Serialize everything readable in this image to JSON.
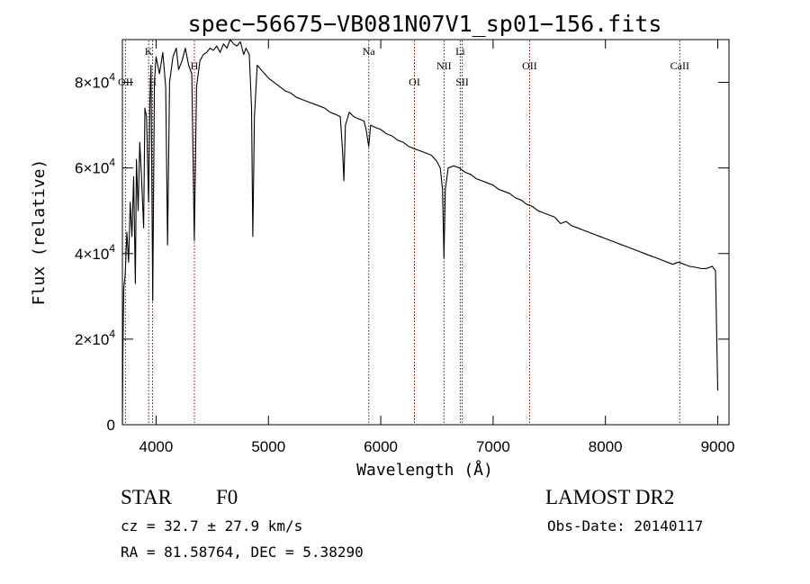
{
  "chart_data": {
    "type": "line",
    "title": "spec−56675−VB081N07V1_sp01−156.fits",
    "xlabel": "Wavelength (Å)",
    "ylabel": "Flux (relative)",
    "xlim": [
      3700,
      9100
    ],
    "ylim": [
      0,
      90000
    ],
    "x_ticks": [
      {
        "value": 4000,
        "label": "4000"
      },
      {
        "value": 5000,
        "label": "5000"
      },
      {
        "value": 6000,
        "label": "6000"
      },
      {
        "value": 7000,
        "label": "7000"
      },
      {
        "value": 8000,
        "label": "8000"
      },
      {
        "value": 9000,
        "label": "9000"
      }
    ],
    "y_ticks": [
      {
        "value": 0,
        "mantissa": "0",
        "exponent": ""
      },
      {
        "value": 20000,
        "mantissa": "2×10",
        "exponent": "4"
      },
      {
        "value": 40000,
        "mantissa": "4×10",
        "exponent": "4"
      },
      {
        "value": 60000,
        "mantissa": "6×10",
        "exponent": "4"
      },
      {
        "value": 80000,
        "mantissa": "8×10",
        "exponent": "4"
      }
    ],
    "series": [
      {
        "points": [
          [
            3700,
            0
          ],
          [
            3705,
            18000
          ],
          [
            3712,
            32000
          ],
          [
            3725,
            35000
          ],
          [
            3740,
            45000
          ],
          [
            3755,
            38000
          ],
          [
            3770,
            52000
          ],
          [
            3785,
            44000
          ],
          [
            3800,
            58000
          ],
          [
            3815,
            33000
          ],
          [
            3825,
            62000
          ],
          [
            3840,
            50000
          ],
          [
            3855,
            66000
          ],
          [
            3870,
            58000
          ],
          [
            3889,
            46000
          ],
          [
            3900,
            74000
          ],
          [
            3915,
            72000
          ],
          [
            3933,
            52000
          ],
          [
            3945,
            76000
          ],
          [
            3955,
            84000
          ],
          [
            3970,
            29000
          ],
          [
            3985,
            80000
          ],
          [
            4000,
            86000
          ],
          [
            4030,
            82000
          ],
          [
            4060,
            87000
          ],
          [
            4085,
            79000
          ],
          [
            4102,
            42000
          ],
          [
            4120,
            80000
          ],
          [
            4150,
            86000
          ],
          [
            4180,
            88000
          ],
          [
            4200,
            83000
          ],
          [
            4230,
            85000
          ],
          [
            4260,
            88000
          ],
          [
            4290,
            84000
          ],
          [
            4318,
            82000
          ],
          [
            4340,
            43000
          ],
          [
            4360,
            79000
          ],
          [
            4390,
            85000
          ],
          [
            4420,
            86500
          ],
          [
            4450,
            87000
          ],
          [
            4480,
            88000
          ],
          [
            4510,
            87500
          ],
          [
            4540,
            88500
          ],
          [
            4570,
            87000
          ],
          [
            4600,
            89000
          ],
          [
            4630,
            88000
          ],
          [
            4660,
            90000
          ],
          [
            4690,
            89000
          ],
          [
            4720,
            88500
          ],
          [
            4750,
            89500
          ],
          [
            4780,
            86500
          ],
          [
            4800,
            88000
          ],
          [
            4830,
            86500
          ],
          [
            4850,
            74000
          ],
          [
            4861,
            44000
          ],
          [
            4875,
            72000
          ],
          [
            4900,
            84000
          ],
          [
            4950,
            82500
          ],
          [
            5000,
            81000
          ],
          [
            5050,
            80000
          ],
          [
            5100,
            79000
          ],
          [
            5150,
            78000
          ],
          [
            5200,
            77500
          ],
          [
            5250,
            76500
          ],
          [
            5300,
            76000
          ],
          [
            5350,
            75500
          ],
          [
            5400,
            75000
          ],
          [
            5450,
            74500
          ],
          [
            5500,
            74000
          ],
          [
            5550,
            73000
          ],
          [
            5600,
            72500
          ],
          [
            5640,
            72000
          ],
          [
            5660,
            64000
          ],
          [
            5672,
            57000
          ],
          [
            5685,
            70000
          ],
          [
            5720,
            73000
          ],
          [
            5760,
            72000
          ],
          [
            5800,
            71500
          ],
          [
            5850,
            71000
          ],
          [
            5870,
            69000
          ],
          [
            5893,
            65000
          ],
          [
            5910,
            70000
          ],
          [
            5950,
            69500
          ],
          [
            6000,
            69000
          ],
          [
            6050,
            68000
          ],
          [
            6100,
            67500
          ],
          [
            6150,
            66500
          ],
          [
            6200,
            66000
          ],
          [
            6250,
            65000
          ],
          [
            6300,
            64500
          ],
          [
            6350,
            64000
          ],
          [
            6400,
            63500
          ],
          [
            6450,
            63000
          ],
          [
            6500,
            61500
          ],
          [
            6530,
            60000
          ],
          [
            6550,
            55000
          ],
          [
            6563,
            39000
          ],
          [
            6575,
            55000
          ],
          [
            6600,
            60000
          ],
          [
            6650,
            60500
          ],
          [
            6700,
            60000
          ],
          [
            6750,
            59000
          ],
          [
            6800,
            58500
          ],
          [
            6850,
            57500
          ],
          [
            6900,
            57000
          ],
          [
            6950,
            56500
          ],
          [
            7000,
            56000
          ],
          [
            7050,
            55000
          ],
          [
            7100,
            54500
          ],
          [
            7150,
            54000
          ],
          [
            7200,
            53000
          ],
          [
            7250,
            52500
          ],
          [
            7300,
            51500
          ],
          [
            7350,
            51000
          ],
          [
            7400,
            50000
          ],
          [
            7450,
            49500
          ],
          [
            7500,
            49000
          ],
          [
            7550,
            48500
          ],
          [
            7600,
            47000
          ],
          [
            7650,
            47500
          ],
          [
            7700,
            46500
          ],
          [
            7750,
            46000
          ],
          [
            7800,
            45500
          ],
          [
            7850,
            45000
          ],
          [
            7900,
            44500
          ],
          [
            7950,
            44000
          ],
          [
            8000,
            43500
          ],
          [
            8050,
            43000
          ],
          [
            8100,
            42500
          ],
          [
            8150,
            42000
          ],
          [
            8200,
            41500
          ],
          [
            8250,
            41000
          ],
          [
            8300,
            40500
          ],
          [
            8350,
            40000
          ],
          [
            8400,
            39500
          ],
          [
            8450,
            39000
          ],
          [
            8500,
            38500
          ],
          [
            8550,
            38000
          ],
          [
            8600,
            37500
          ],
          [
            8650,
            38000
          ],
          [
            8700,
            37500
          ],
          [
            8750,
            37000
          ],
          [
            8800,
            36800
          ],
          [
            8850,
            36500
          ],
          [
            8900,
            36500
          ],
          [
            8950,
            37000
          ],
          [
            8980,
            36000
          ],
          [
            9000,
            8000
          ]
        ]
      }
    ],
    "lines": [
      {
        "label": "OII",
        "wavelength": 3727,
        "row": "low"
      },
      {
        "label": "K",
        "wavelength": 3934,
        "row": "top"
      },
      {
        "label": "H",
        "wavelength": 3969,
        "row": "low"
      },
      {
        "label": "H",
        "wavelength": 4341,
        "row": "mid"
      },
      {
        "label": "Na",
        "wavelength": 5893,
        "row": "top"
      },
      {
        "label": "OI",
        "wavelength": 6300,
        "row": "low"
      },
      {
        "label": "NII",
        "wavelength": 6563,
        "row": "mid"
      },
      {
        "label": "Li",
        "wavelength": 6708,
        "row": "top"
      },
      {
        "label": "SII",
        "wavelength": 6725,
        "row": "low"
      },
      {
        "label": "OII",
        "wavelength": 7325,
        "row": "mid"
      },
      {
        "label": "CaII",
        "wavelength": 8662,
        "row": "mid"
      }
    ],
    "line_color": "#8b0000",
    "grid": false,
    "legend": "none"
  },
  "info": {
    "class": "STAR",
    "subclass": "F0",
    "cz": "cz = 32.7 ± 27.9 km/s",
    "coords": "RA =  81.58764, DEC =   5.38290",
    "survey": "LAMOST DR2",
    "obsdate": "Obs-Date: 20140117"
  }
}
